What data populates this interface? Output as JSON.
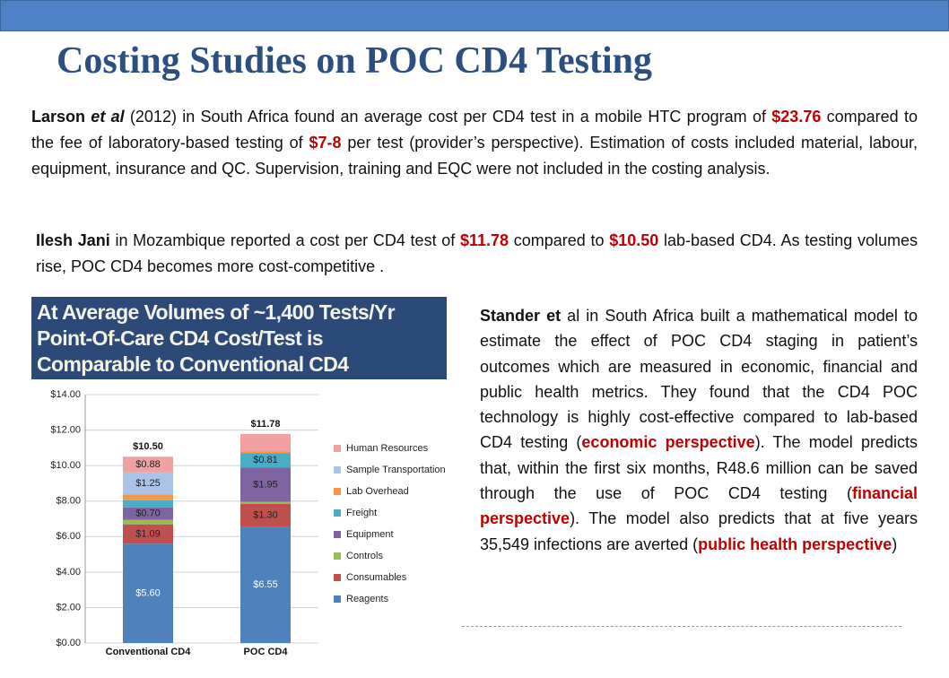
{
  "header": {
    "title": "Costing Studies on POC CD4 Testing"
  },
  "paragraphs": [
    [
      {
        "text": "Larson",
        "style": "bold"
      },
      {
        "text": " et al",
        "style": "bold-italic"
      },
      {
        "text": " (2012) in South Africa found an average cost per CD4 test in a mobile HTC program of ",
        "style": "normal"
      },
      {
        "text": "$23.76",
        "style": "red"
      },
      {
        "text": " compared to the fee of laboratory-based testing of ",
        "style": "normal"
      },
      {
        "text": "$7-8",
        "style": "red"
      },
      {
        "text": " per test (provider’s perspective). Estimation of costs included material,  labour, equipment, insurance and QC. Supervision, training and EQC were not included in the costing analysis.",
        "style": "normal"
      }
    ],
    [
      {
        "text": "Ilesh Jani",
        "style": "bold"
      },
      {
        "text": " in Mozambique reported a cost per CD4 test of ",
        "style": "normal"
      },
      {
        "text": "$11.78",
        "style": "red"
      },
      {
        "text": " compared to ",
        "style": "normal"
      },
      {
        "text": "$10.50",
        "style": "red"
      },
      {
        "text": " lab-based CD4. As testing volumes rise, POC CD4 becomes more cost-competitive .",
        "style": "normal"
      }
    ],
    [
      {
        "text": "Stander et",
        "style": "bold"
      },
      {
        "text": " al in South Africa built a mathematical model to estimate the effect of POC CD4 staging in patient’s outcomes which are measured in economic, financial and public health metrics. They found that the CD4 POC technology is highly cost-effective compared to lab-based CD4 testing (",
        "style": "normal"
      },
      {
        "text": "economic perspective",
        "style": "red"
      },
      {
        "text": "). The  model predicts that, within the first six months, R48.6 million can be saved through the use of POC CD4 testing (",
        "style": "normal"
      },
      {
        "text": "financial perspective",
        "style": "red"
      },
      {
        "text": "). The model also predicts that at five years 35,549 infections are averted (",
        "style": "normal"
      },
      {
        "text": "public health perspective",
        "style": "red"
      },
      {
        "text": ")",
        "style": "normal"
      }
    ]
  ],
  "chart_data": {
    "type": "stacked-bar",
    "title": "At Average Volumes of ~1,400 Tests/Yr Point-Of-Care CD4 Cost/Test is Comparable to Conventional CD4",
    "categories": [
      "Conventional CD4",
      "POC CD4"
    ],
    "ylim": [
      0,
      14
    ],
    "yticks": [
      {
        "value": 0,
        "label": "$0.00"
      },
      {
        "value": 2,
        "label": "$2.00"
      },
      {
        "value": 4,
        "label": "$4.00"
      },
      {
        "value": 6,
        "label": "$6.00"
      },
      {
        "value": 8,
        "label": "$8.00"
      },
      {
        "value": 10,
        "label": "$10.00"
      },
      {
        "value": 12,
        "label": "$12.00"
      },
      {
        "value": 14,
        "label": "$14.00"
      }
    ],
    "grid": true,
    "totals": [
      10.5,
      11.78
    ],
    "total_labels": [
      "$10.50",
      "$11.78"
    ],
    "series": [
      {
        "name": "Reagents",
        "color": "#4f81bd",
        "values": [
          5.6,
          6.55
        ],
        "value_labels": [
          "$5.60",
          "$6.55"
        ]
      },
      {
        "name": "Consumables",
        "color": "#c0504d",
        "values": [
          1.09,
          1.3
        ],
        "value_labels": [
          "$1.09",
          "$1.30"
        ]
      },
      {
        "name": "Controls",
        "color": "#9bbb59",
        "values": [
          0.25,
          0.1
        ],
        "value_labels": [
          null,
          null
        ]
      },
      {
        "name": "Equipment",
        "color": "#8064a2",
        "values": [
          0.7,
          1.95
        ],
        "value_labels": [
          "$0.70",
          "$1.95"
        ]
      },
      {
        "name": "Freight",
        "color": "#4bacc6",
        "values": [
          0.4,
          0.81
        ],
        "value_labels": [
          null,
          "$0.81"
        ]
      },
      {
        "name": "Lab Overhead",
        "color": "#f79646",
        "values": [
          0.33,
          0.1
        ],
        "value_labels": [
          null,
          null
        ]
      },
      {
        "name": "Sample Transportation",
        "color": "#a9c4e6",
        "values": [
          1.25,
          0
        ],
        "value_labels": [
          "$1.25",
          null
        ]
      },
      {
        "name": "Human Resources",
        "color": "#f2a1a1",
        "values": [
          0.88,
          0.97
        ],
        "value_labels": [
          "$0.88",
          null
        ]
      }
    ]
  }
}
